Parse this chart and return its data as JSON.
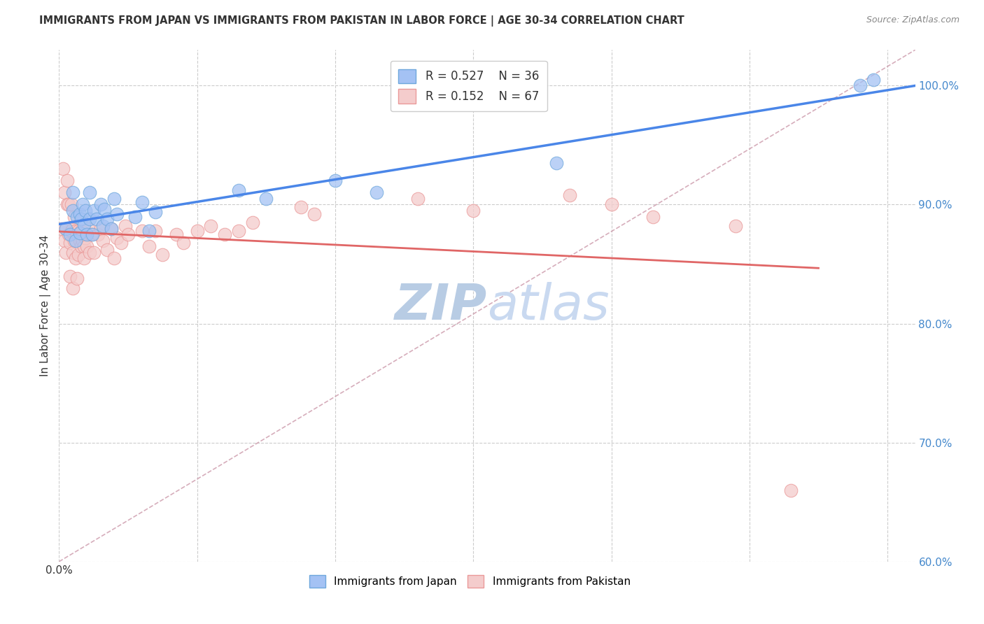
{
  "title": "IMMIGRANTS FROM JAPAN VS IMMIGRANTS FROM PAKISTAN IN LABOR FORCE | AGE 30-34 CORRELATION CHART",
  "source": "Source: ZipAtlas.com",
  "ylabel": "In Labor Force | Age 30-34",
  "xlim": [
    0.0,
    0.62
  ],
  "ylim": [
    0.6,
    1.03
  ],
  "yticks": [
    0.6,
    0.7,
    0.8,
    0.9,
    1.0
  ],
  "ytick_labels": [
    "60.0%",
    "70.0%",
    "80.0%",
    "90.0%",
    "100.0%"
  ],
  "xtick_positions": [
    0.0,
    0.1,
    0.2,
    0.3,
    0.4,
    0.5,
    0.6
  ],
  "xtick_labels": [
    "0.0%",
    "",
    "",
    "",
    "",
    "",
    ""
  ],
  "japan_color": "#a4c2f4",
  "japan_edge_color": "#6fa8dc",
  "pakistan_color": "#f4cccc",
  "pakistan_edge_color": "#ea9999",
  "japan_line_color": "#4a86e8",
  "pakistan_line_color": "#e06666",
  "japan_R": 0.527,
  "japan_N": 36,
  "pakistan_R": 0.152,
  "pakistan_N": 67,
  "japan_scatter_x": [
    0.005,
    0.008,
    0.01,
    0.01,
    0.012,
    0.013,
    0.015,
    0.015,
    0.016,
    0.017,
    0.018,
    0.019,
    0.02,
    0.022,
    0.022,
    0.024,
    0.025,
    0.027,
    0.03,
    0.032,
    0.033,
    0.035,
    0.038,
    0.04,
    0.042,
    0.055,
    0.06,
    0.065,
    0.07,
    0.13,
    0.15,
    0.2,
    0.23,
    0.36,
    0.58,
    0.59
  ],
  "japan_scatter_y": [
    0.88,
    0.875,
    0.895,
    0.91,
    0.87,
    0.89,
    0.876,
    0.892,
    0.888,
    0.9,
    0.883,
    0.895,
    0.875,
    0.888,
    0.91,
    0.875,
    0.895,
    0.888,
    0.9,
    0.882,
    0.896,
    0.888,
    0.88,
    0.905,
    0.892,
    0.89,
    0.902,
    0.878,
    0.894,
    0.912,
    0.905,
    0.92,
    0.91,
    0.935,
    1.0,
    1.005
  ],
  "pakistan_scatter_x": [
    0.002,
    0.003,
    0.004,
    0.004,
    0.005,
    0.005,
    0.006,
    0.006,
    0.007,
    0.007,
    0.008,
    0.008,
    0.009,
    0.009,
    0.01,
    0.01,
    0.01,
    0.011,
    0.011,
    0.012,
    0.012,
    0.013,
    0.013,
    0.014,
    0.014,
    0.015,
    0.016,
    0.016,
    0.017,
    0.018,
    0.018,
    0.019,
    0.02,
    0.021,
    0.022,
    0.023,
    0.025,
    0.028,
    0.03,
    0.032,
    0.035,
    0.038,
    0.04,
    0.042,
    0.045,
    0.048,
    0.05,
    0.06,
    0.065,
    0.07,
    0.075,
    0.085,
    0.09,
    0.1,
    0.11,
    0.12,
    0.13,
    0.14,
    0.175,
    0.185,
    0.26,
    0.3,
    0.37,
    0.4,
    0.43,
    0.49,
    0.53
  ],
  "pakistan_scatter_y": [
    0.88,
    0.93,
    0.87,
    0.91,
    0.88,
    0.86,
    0.92,
    0.9,
    0.875,
    0.9,
    0.868,
    0.84,
    0.878,
    0.9,
    0.88,
    0.86,
    0.83,
    0.87,
    0.89,
    0.878,
    0.855,
    0.875,
    0.838,
    0.858,
    0.878,
    0.87,
    0.865,
    0.878,
    0.87,
    0.865,
    0.855,
    0.872,
    0.865,
    0.88,
    0.86,
    0.875,
    0.86,
    0.875,
    0.88,
    0.87,
    0.862,
    0.88,
    0.855,
    0.872,
    0.868,
    0.882,
    0.875,
    0.878,
    0.865,
    0.878,
    0.858,
    0.875,
    0.868,
    0.878,
    0.882,
    0.875,
    0.878,
    0.885,
    0.898,
    0.892,
    0.905,
    0.895,
    0.908,
    0.9,
    0.89,
    0.882,
    0.66
  ],
  "diag_line_color": "#cc99aa",
  "background_color": "#ffffff",
  "grid_color": "#cccccc",
  "watermark_text_1": "ZIP",
  "watermark_text_2": "atlas",
  "watermark_color_1": "#b8cce4",
  "watermark_color_2": "#c9d9f0"
}
